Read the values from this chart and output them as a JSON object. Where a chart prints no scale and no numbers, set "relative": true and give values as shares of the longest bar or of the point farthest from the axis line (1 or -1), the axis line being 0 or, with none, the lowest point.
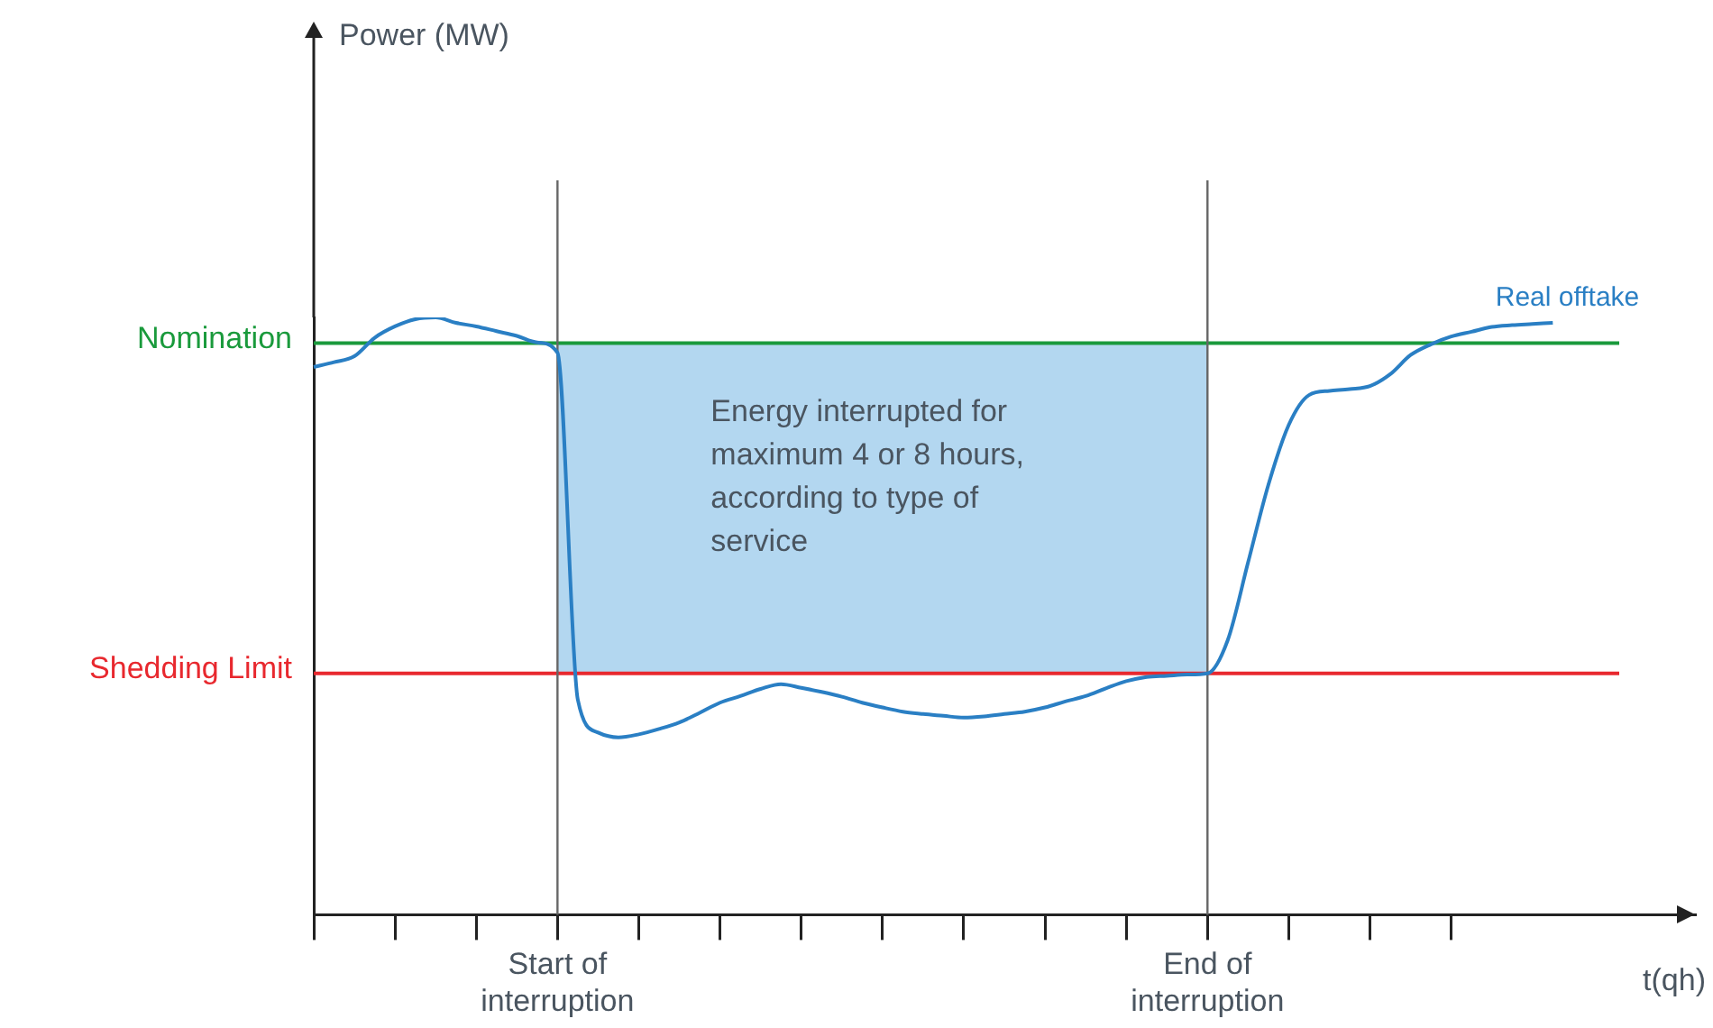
{
  "chart_data": {
    "type": "line",
    "relative": true,
    "xlabel": "t(qh)",
    "categories": [
      null,
      null,
      null,
      null,
      null,
      null,
      null,
      null,
      null,
      null,
      null,
      null,
      "Start of interruption",
      null,
      null,
      null,
      null,
      null,
      null,
      null,
      null,
      null,
      null,
      null,
      null,
      null,
      null,
      null,
      null,
      null,
      null,
      null,
      null,
      null,
      null,
      null,
      null,
      null,
      null,
      null,
      null,
      null,
      null,
      null,
      "End of interruption",
      null,
      null,
      null,
      null,
      null,
      null,
      null,
      null,
      null,
      null,
      null,
      null,
      null,
      null,
      null,
      null,
      null,
      null,
      null,
      null,
      null,
      null,
      null,
      null
    ],
    "series": [
      {
        "name": "Real offtake",
        "color": "#2a7fc4",
        "values": [
          0.917,
          0.925,
          0.935,
          0.966,
          0.985,
          0.997,
          1,
          0.991,
          0.985,
          0.977,
          0.969,
          0.958,
          0.941,
          0.36,
          0.305,
          0.297,
          0.302,
          0.311,
          0.322,
          0.338,
          0.355,
          0.366,
          0.378,
          0.386,
          0.38,
          0.373,
          0.365,
          0.355,
          0.347,
          0.34,
          0.336,
          0.333,
          0.33,
          0.332,
          0.336,
          0.34,
          0.347,
          0.357,
          0.366,
          0.379,
          0.391,
          0.398,
          0.4,
          0.402,
          0.404,
          0.46,
          0.59,
          0.72,
          0.82,
          0.87,
          0.877,
          0.88,
          0.885,
          0.905,
          0.937,
          0.955,
          0.968,
          0.976,
          0.984,
          0.987,
          0.989,
          0.991,
          null,
          null,
          null,
          null,
          null,
          null,
          null
        ]
      }
    ],
    "ref_lines": [
      {
        "axis": "y",
        "value": 0.957,
        "label": "Nomination",
        "color": "#1a9a3c"
      },
      {
        "axis": "y",
        "value": 0.404,
        "label": "Shedding Limit",
        "color": "#e8282e"
      },
      {
        "axis": "x",
        "value": "Start of interruption",
        "color": "#666666"
      },
      {
        "axis": "x",
        "value": "End of interruption",
        "color": "#666666"
      }
    ],
    "bands": [
      {
        "axis": "x",
        "from": "Start of interruption",
        "to": "End of interruption",
        "color": "#b3d7f0"
      }
    ],
    "annotations": [
      "Power (MW)",
      "Energy interrupted for maximum 4 or 8 hours, according to type of service"
    ],
    "grid": false,
    "legend": false,
    "marker": "none",
    "line_style": "solid"
  }
}
